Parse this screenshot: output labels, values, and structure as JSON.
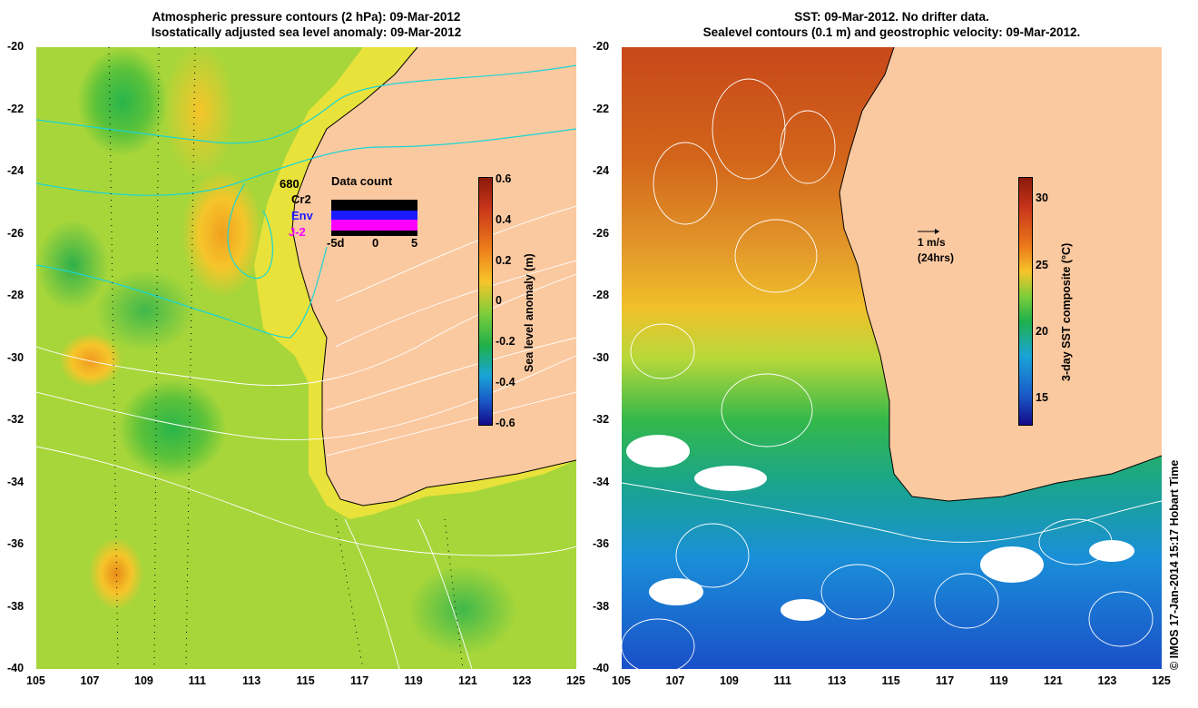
{
  "left_panel": {
    "title_line1": "Atmospheric pressure contours (2 hPa): 09-Mar-2012",
    "title_line2": "Isostatically adjusted sea level anomaly: 09-Mar-2012",
    "colorbar": {
      "title": "Sea level anomaly (m)",
      "ticks": [
        "0.6",
        "0.4",
        "0.2",
        "0",
        "-0.2",
        "-0.4",
        "-0.6"
      ]
    },
    "data_count": {
      "title": "Data count",
      "count": "680",
      "missions": [
        {
          "label": "Cr2",
          "color": "#000000"
        },
        {
          "label": "Env",
          "color": "#1a1aff"
        },
        {
          "label": "J-2",
          "color": "#ff00ff"
        }
      ],
      "xticks": [
        "-5d",
        "0",
        "5"
      ]
    }
  },
  "right_panel": {
    "title_line1": "SST: 09-Mar-2012. No drifter data.",
    "title_line2": "Sealevel contours (0.1 m) and geostrophic velocity: 09-Mar-2012.",
    "colorbar": {
      "title": "3-day SST composite (°C)",
      "ticks": [
        "30",
        "25",
        "20",
        "15"
      ]
    },
    "velocity_scale": {
      "label": "1 m/s",
      "sublabel": "(24hrs)"
    }
  },
  "axes": {
    "y_ticks": [
      "-20",
      "-22",
      "-24",
      "-26",
      "-28",
      "-30",
      "-32",
      "-34",
      "-36",
      "-38",
      "-40"
    ],
    "x_ticks": [
      "105",
      "107",
      "109",
      "111",
      "113",
      "115",
      "117",
      "119",
      "121",
      "123",
      "125"
    ],
    "lat_range": [
      -40,
      -20
    ],
    "lon_range": [
      105,
      125
    ]
  },
  "credit": "© IMOS 17-Jan-2014 15:17 Hobart Time",
  "colors": {
    "land": "#fbc9a0",
    "coast_shelf": "#e8e23a",
    "contour": "#ffffff",
    "pressure": "#1ad5d5"
  }
}
